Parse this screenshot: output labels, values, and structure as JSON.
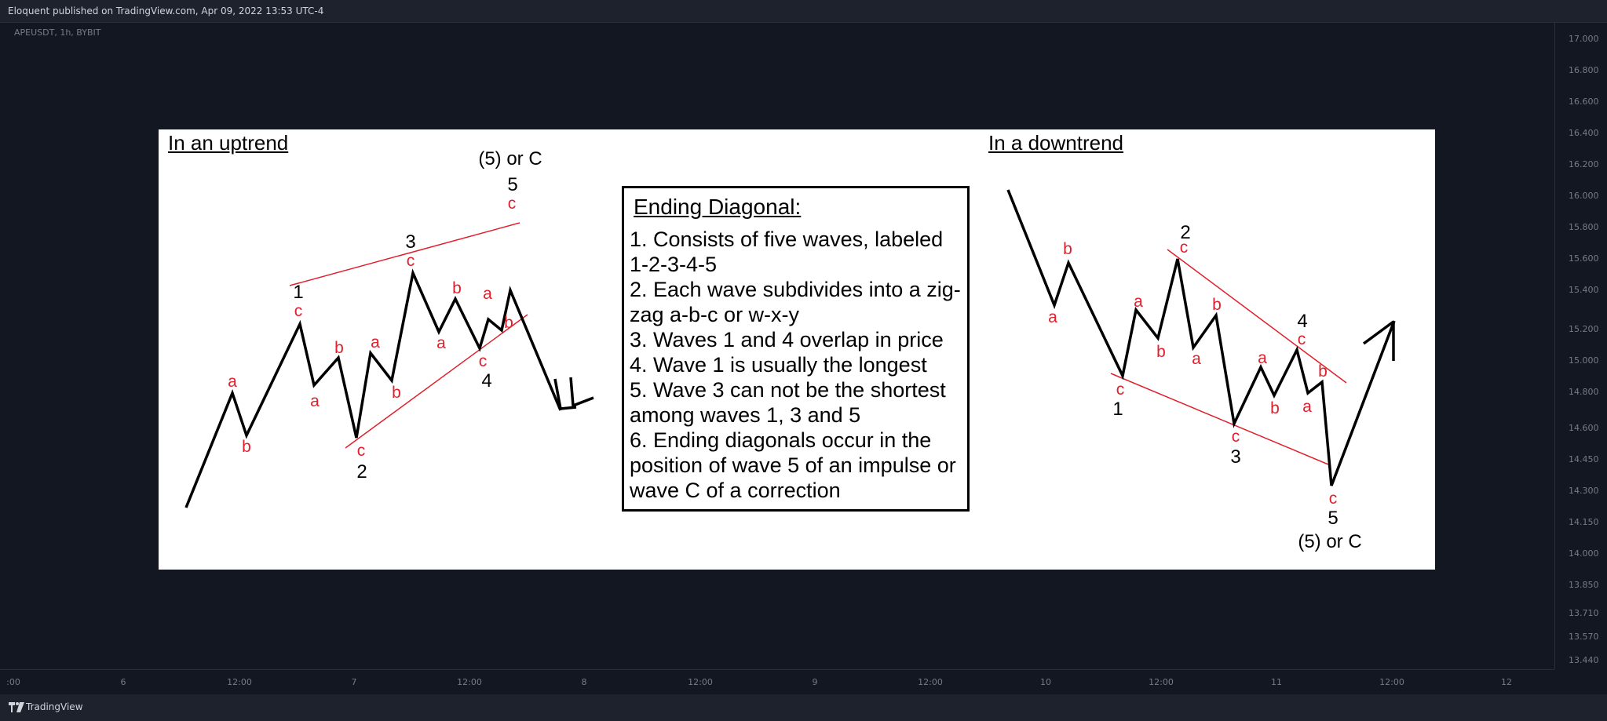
{
  "header": {
    "publish_line": "Eloquent published on TradingView.com, Apr 09, 2022 13:53 UTC-4"
  },
  "symbol": "APEUSDT, 1h, BYBIT",
  "price_axis": [
    "17.000",
    "16.800",
    "16.600",
    "16.400",
    "16.200",
    "16.000",
    "15.800",
    "15.600",
    "15.400",
    "15.200",
    "15.000",
    "14.800",
    "14.600",
    "14.450",
    "14.300",
    "14.150",
    "14.000",
    "13.850",
    "13.710",
    "13.570",
    "13.440"
  ],
  "time_axis": [
    ":00",
    "6",
    "12:00",
    "7",
    "12:00",
    "8",
    "12:00",
    "9",
    "12:00",
    "10",
    "12:00",
    "11",
    "12:00",
    "12"
  ],
  "footer": {
    "brand": "TradingView"
  },
  "panel": {
    "uptrend_title": "In an uptrend",
    "downtrend_title": "In a downtrend",
    "ending_box": {
      "heading": "Ending Diagonal:",
      "items": [
        "1. Consists of five waves, labeled 1-2-3-4-5",
        "2. Each wave subdivides into a zig-zag a-b-c or w-x-y",
        "3. Waves 1 and 4 overlap in price",
        "4. Wave 1 is usually the longest",
        "5. Wave 3 can not be the shortest among waves 1, 3 and 5",
        "6. Ending diagonals occur in the position of wave 5 of an impulse or wave C of a correction"
      ]
    },
    "up_labels": {
      "wave1": "1",
      "wave2": "2",
      "wave3": "3",
      "wave4": "4",
      "wave5": "5",
      "target": "(5) or C",
      "sub": [
        "a",
        "b",
        "c",
        "a",
        "b",
        "c",
        "a",
        "b",
        "c",
        "a",
        "b",
        "c",
        "a",
        "b",
        "c"
      ]
    },
    "down_labels": {
      "wave1": "1",
      "wave2": "2",
      "wave3": "3",
      "wave4": "4",
      "wave5": "5",
      "target": "(5) or C",
      "sub": [
        "a",
        "b",
        "c",
        "a",
        "b",
        "c",
        "a",
        "b",
        "c",
        "a",
        "b",
        "c",
        "a",
        "b",
        "c"
      ]
    }
  },
  "colors": {
    "background": "#131722",
    "panel": "#ffffff",
    "wave": "#000000",
    "sub_label": "#e0202c",
    "channel": "#e0202c"
  }
}
